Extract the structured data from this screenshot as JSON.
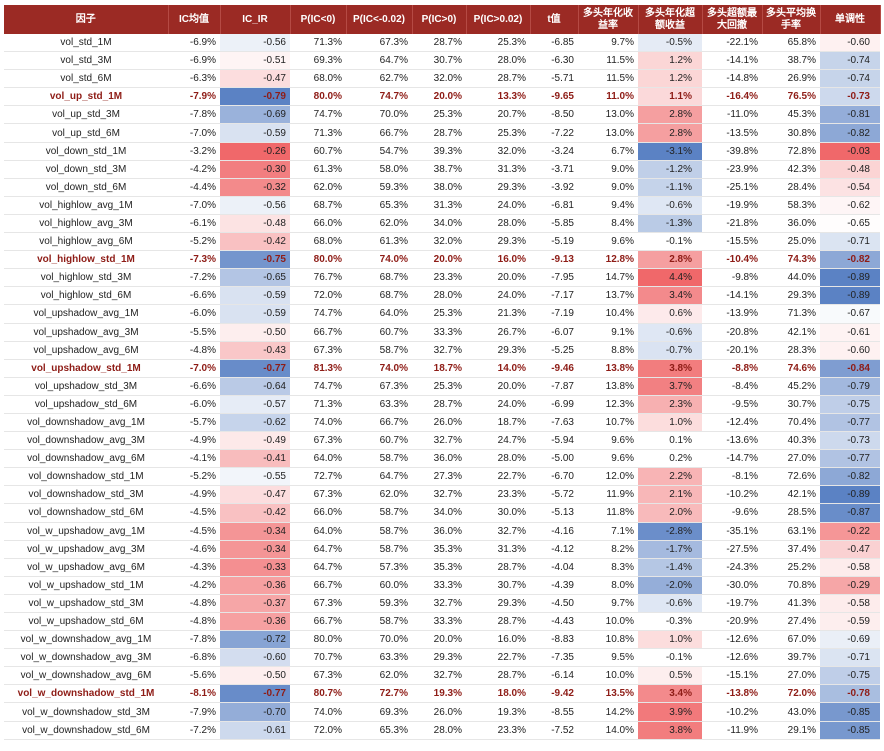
{
  "headers": [
    "因子",
    "IC均值",
    "IC_IR",
    "P(IC<0)",
    "P(IC<-0.02)",
    "P(IC>0)",
    "P(IC>0.02)",
    "t值",
    "多头年化收益率",
    "多头年化超额收益",
    "多头超额最大回撤",
    "多头平均换手率",
    "单调性"
  ],
  "header_lines": [
    [
      "因子"
    ],
    [
      "IC均值"
    ],
    [
      "IC_IR"
    ],
    [
      "P(IC<0)"
    ],
    [
      "P(IC<-0.02)"
    ],
    [
      "P(IC>0)"
    ],
    [
      "P(IC>0.02)"
    ],
    [
      "t值"
    ],
    [
      "多头年化收",
      "益率"
    ],
    [
      "多头年化超",
      "额收益"
    ],
    [
      "多头超额最",
      "大回撤"
    ],
    [
      "多头平均换",
      "手率"
    ],
    [
      "单调性"
    ]
  ],
  "rows": [
    {
      "name": "vol_std_1M",
      "ic": "-6.9%",
      "icir": "-0.56",
      "p1": "71.3%",
      "p2": "67.3%",
      "p3": "28.7%",
      "p4": "25.3%",
      "t": "-6.85",
      "ret": "9.7%",
      "ex": "-0.5%",
      "dd": "-22.1%",
      "to": "65.8%",
      "mono": "-0.60",
      "hl": false
    },
    {
      "name": "vol_std_3M",
      "ic": "-6.9%",
      "icir": "-0.51",
      "p1": "69.3%",
      "p2": "64.7%",
      "p3": "30.7%",
      "p4": "28.0%",
      "t": "-6.30",
      "ret": "11.5%",
      "ex": "1.2%",
      "dd": "-14.1%",
      "to": "38.7%",
      "mono": "-0.74",
      "hl": false
    },
    {
      "name": "vol_std_6M",
      "ic": "-6.3%",
      "icir": "-0.47",
      "p1": "68.0%",
      "p2": "62.7%",
      "p3": "32.0%",
      "p4": "28.7%",
      "t": "-5.71",
      "ret": "11.5%",
      "ex": "1.2%",
      "dd": "-14.8%",
      "to": "26.9%",
      "mono": "-0.74",
      "hl": false
    },
    {
      "name": "vol_up_std_1M",
      "ic": "-7.9%",
      "icir": "-0.79",
      "p1": "80.0%",
      "p2": "74.7%",
      "p3": "20.0%",
      "p4": "13.3%",
      "t": "-9.65",
      "ret": "11.0%",
      "ex": "1.1%",
      "dd": "-16.4%",
      "to": "76.5%",
      "mono": "-0.73",
      "hl": true
    },
    {
      "name": "vol_up_std_3M",
      "ic": "-7.8%",
      "icir": "-0.69",
      "p1": "74.7%",
      "p2": "70.0%",
      "p3": "25.3%",
      "p4": "20.7%",
      "t": "-8.50",
      "ret": "13.0%",
      "ex": "2.8%",
      "dd": "-11.0%",
      "to": "45.3%",
      "mono": "-0.81",
      "hl": false
    },
    {
      "name": "vol_up_std_6M",
      "ic": "-7.0%",
      "icir": "-0.59",
      "p1": "71.3%",
      "p2": "66.7%",
      "p3": "28.7%",
      "p4": "25.3%",
      "t": "-7.22",
      "ret": "13.0%",
      "ex": "2.8%",
      "dd": "-13.5%",
      "to": "30.8%",
      "mono": "-0.82",
      "hl": false
    },
    {
      "name": "vol_down_std_1M",
      "ic": "-3.2%",
      "icir": "-0.26",
      "p1": "60.7%",
      "p2": "54.7%",
      "p3": "39.3%",
      "p4": "32.0%",
      "t": "-3.24",
      "ret": "6.7%",
      "ex": "-3.1%",
      "dd": "-39.8%",
      "to": "72.8%",
      "mono": "-0.03",
      "hl": false
    },
    {
      "name": "vol_down_std_3M",
      "ic": "-4.2%",
      "icir": "-0.30",
      "p1": "61.3%",
      "p2": "58.0%",
      "p3": "38.7%",
      "p4": "31.3%",
      "t": "-3.71",
      "ret": "9.0%",
      "ex": "-1.2%",
      "dd": "-23.9%",
      "to": "42.3%",
      "mono": "-0.48",
      "hl": false
    },
    {
      "name": "vol_down_std_6M",
      "ic": "-4.4%",
      "icir": "-0.32",
      "p1": "62.0%",
      "p2": "59.3%",
      "p3": "38.0%",
      "p4": "29.3%",
      "t": "-3.92",
      "ret": "9.0%",
      "ex": "-1.1%",
      "dd": "-25.1%",
      "to": "28.4%",
      "mono": "-0.54",
      "hl": false
    },
    {
      "name": "vol_highlow_avg_1M",
      "ic": "-7.0%",
      "icir": "-0.56",
      "p1": "68.7%",
      "p2": "65.3%",
      "p3": "31.3%",
      "p4": "24.0%",
      "t": "-6.81",
      "ret": "9.4%",
      "ex": "-0.6%",
      "dd": "-19.9%",
      "to": "58.3%",
      "mono": "-0.62",
      "hl": false
    },
    {
      "name": "vol_highlow_avg_3M",
      "ic": "-6.1%",
      "icir": "-0.48",
      "p1": "66.0%",
      "p2": "62.0%",
      "p3": "34.0%",
      "p4": "28.0%",
      "t": "-5.85",
      "ret": "8.4%",
      "ex": "-1.3%",
      "dd": "-21.8%",
      "to": "36.0%",
      "mono": "-0.65",
      "hl": false
    },
    {
      "name": "vol_highlow_avg_6M",
      "ic": "-5.2%",
      "icir": "-0.42",
      "p1": "68.0%",
      "p2": "61.3%",
      "p3": "32.0%",
      "p4": "29.3%",
      "t": "-5.19",
      "ret": "9.6%",
      "ex": "-0.1%",
      "dd": "-15.5%",
      "to": "25.0%",
      "mono": "-0.71",
      "hl": false
    },
    {
      "name": "vol_highlow_std_1M",
      "ic": "-7.3%",
      "icir": "-0.75",
      "p1": "80.0%",
      "p2": "74.0%",
      "p3": "20.0%",
      "p4": "16.0%",
      "t": "-9.13",
      "ret": "12.8%",
      "ex": "2.8%",
      "dd": "-10.4%",
      "to": "74.3%",
      "mono": "-0.82",
      "hl": true
    },
    {
      "name": "vol_highlow_std_3M",
      "ic": "-7.2%",
      "icir": "-0.65",
      "p1": "76.7%",
      "p2": "68.7%",
      "p3": "23.3%",
      "p4": "20.0%",
      "t": "-7.95",
      "ret": "14.7%",
      "ex": "4.4%",
      "dd": "-9.8%",
      "to": "44.0%",
      "mono": "-0.89",
      "hl": false
    },
    {
      "name": "vol_highlow_std_6M",
      "ic": "-6.6%",
      "icir": "-0.59",
      "p1": "72.0%",
      "p2": "68.7%",
      "p3": "28.0%",
      "p4": "24.0%",
      "t": "-7.17",
      "ret": "13.7%",
      "ex": "3.4%",
      "dd": "-14.1%",
      "to": "29.3%",
      "mono": "-0.89",
      "hl": false
    },
    {
      "name": "vol_upshadow_avg_1M",
      "ic": "-6.0%",
      "icir": "-0.59",
      "p1": "74.7%",
      "p2": "64.0%",
      "p3": "25.3%",
      "p4": "21.3%",
      "t": "-7.19",
      "ret": "10.4%",
      "ex": "0.6%",
      "dd": "-13.9%",
      "to": "71.3%",
      "mono": "-0.67",
      "hl": false
    },
    {
      "name": "vol_upshadow_avg_3M",
      "ic": "-5.5%",
      "icir": "-0.50",
      "p1": "66.7%",
      "p2": "60.7%",
      "p3": "33.3%",
      "p4": "26.7%",
      "t": "-6.07",
      "ret": "9.1%",
      "ex": "-0.6%",
      "dd": "-20.8%",
      "to": "42.1%",
      "mono": "-0.61",
      "hl": false
    },
    {
      "name": "vol_upshadow_avg_6M",
      "ic": "-4.8%",
      "icir": "-0.43",
      "p1": "67.3%",
      "p2": "58.7%",
      "p3": "32.7%",
      "p4": "29.3%",
      "t": "-5.25",
      "ret": "8.8%",
      "ex": "-0.7%",
      "dd": "-20.1%",
      "to": "28.3%",
      "mono": "-0.60",
      "hl": false
    },
    {
      "name": "vol_upshadow_std_1M",
      "ic": "-7.0%",
      "icir": "-0.77",
      "p1": "81.3%",
      "p2": "74.0%",
      "p3": "18.7%",
      "p4": "14.0%",
      "t": "-9.46",
      "ret": "13.8%",
      "ex": "3.8%",
      "dd": "-8.8%",
      "to": "74.6%",
      "mono": "-0.84",
      "hl": true
    },
    {
      "name": "vol_upshadow_std_3M",
      "ic": "-6.6%",
      "icir": "-0.64",
      "p1": "74.7%",
      "p2": "67.3%",
      "p3": "25.3%",
      "p4": "20.0%",
      "t": "-7.87",
      "ret": "13.8%",
      "ex": "3.7%",
      "dd": "-8.4%",
      "to": "45.2%",
      "mono": "-0.79",
      "hl": false
    },
    {
      "name": "vol_upshadow_std_6M",
      "ic": "-6.0%",
      "icir": "-0.57",
      "p1": "71.3%",
      "p2": "63.3%",
      "p3": "28.7%",
      "p4": "24.0%",
      "t": "-6.99",
      "ret": "12.3%",
      "ex": "2.3%",
      "dd": "-9.5%",
      "to": "30.7%",
      "mono": "-0.75",
      "hl": false
    },
    {
      "name": "vol_downshadow_avg_1M",
      "ic": "-5.7%",
      "icir": "-0.62",
      "p1": "74.0%",
      "p2": "66.7%",
      "p3": "26.0%",
      "p4": "18.7%",
      "t": "-7.63",
      "ret": "10.7%",
      "ex": "1.0%",
      "dd": "-12.4%",
      "to": "70.4%",
      "mono": "-0.77",
      "hl": false
    },
    {
      "name": "vol_downshadow_avg_3M",
      "ic": "-4.9%",
      "icir": "-0.49",
      "p1": "67.3%",
      "p2": "60.7%",
      "p3": "32.7%",
      "p4": "24.7%",
      "t": "-5.94",
      "ret": "9.6%",
      "ex": "0.1%",
      "dd": "-13.6%",
      "to": "40.3%",
      "mono": "-0.73",
      "hl": false
    },
    {
      "name": "vol_downshadow_avg_6M",
      "ic": "-4.1%",
      "icir": "-0.41",
      "p1": "64.0%",
      "p2": "58.7%",
      "p3": "36.0%",
      "p4": "28.0%",
      "t": "-5.00",
      "ret": "9.6%",
      "ex": "0.2%",
      "dd": "-14.7%",
      "to": "27.0%",
      "mono": "-0.77",
      "hl": false
    },
    {
      "name": "vol_downshadow_std_1M",
      "ic": "-5.2%",
      "icir": "-0.55",
      "p1": "72.7%",
      "p2": "64.7%",
      "p3": "27.3%",
      "p4": "22.7%",
      "t": "-6.70",
      "ret": "12.0%",
      "ex": "2.2%",
      "dd": "-8.1%",
      "to": "72.6%",
      "mono": "-0.82",
      "hl": false
    },
    {
      "name": "vol_downshadow_std_3M",
      "ic": "-4.9%",
      "icir": "-0.47",
      "p1": "67.3%",
      "p2": "62.0%",
      "p3": "32.7%",
      "p4": "23.3%",
      "t": "-5.72",
      "ret": "11.9%",
      "ex": "2.1%",
      "dd": "-10.2%",
      "to": "42.1%",
      "mono": "-0.89",
      "hl": false
    },
    {
      "name": "vol_downshadow_std_6M",
      "ic": "-4.5%",
      "icir": "-0.42",
      "p1": "66.0%",
      "p2": "58.7%",
      "p3": "34.0%",
      "p4": "30.0%",
      "t": "-5.13",
      "ret": "11.8%",
      "ex": "2.0%",
      "dd": "-9.6%",
      "to": "28.5%",
      "mono": "-0.87",
      "hl": false
    },
    {
      "name": "vol_w_upshadow_avg_1M",
      "ic": "-4.5%",
      "icir": "-0.34",
      "p1": "64.0%",
      "p2": "58.7%",
      "p3": "36.0%",
      "p4": "32.7%",
      "t": "-4.16",
      "ret": "7.1%",
      "ex": "-2.8%",
      "dd": "-35.1%",
      "to": "63.1%",
      "mono": "-0.22",
      "hl": false
    },
    {
      "name": "vol_w_upshadow_avg_3M",
      "ic": "-4.6%",
      "icir": "-0.34",
      "p1": "64.7%",
      "p2": "58.7%",
      "p3": "35.3%",
      "p4": "31.3%",
      "t": "-4.12",
      "ret": "8.2%",
      "ex": "-1.7%",
      "dd": "-27.5%",
      "to": "37.4%",
      "mono": "-0.47",
      "hl": false
    },
    {
      "name": "vol_w_upshadow_avg_6M",
      "ic": "-4.3%",
      "icir": "-0.33",
      "p1": "64.7%",
      "p2": "57.3%",
      "p3": "35.3%",
      "p4": "28.7%",
      "t": "-4.04",
      "ret": "8.3%",
      "ex": "-1.4%",
      "dd": "-24.3%",
      "to": "25.2%",
      "mono": "-0.58",
      "hl": false
    },
    {
      "name": "vol_w_upshadow_std_1M",
      "ic": "-4.2%",
      "icir": "-0.36",
      "p1": "66.7%",
      "p2": "60.0%",
      "p3": "33.3%",
      "p4": "30.7%",
      "t": "-4.39",
      "ret": "8.0%",
      "ex": "-2.0%",
      "dd": "-30.0%",
      "to": "70.8%",
      "mono": "-0.29",
      "hl": false
    },
    {
      "name": "vol_w_upshadow_std_3M",
      "ic": "-4.8%",
      "icir": "-0.37",
      "p1": "67.3%",
      "p2": "59.3%",
      "p3": "32.7%",
      "p4": "29.3%",
      "t": "-4.50",
      "ret": "9.7%",
      "ex": "-0.6%",
      "dd": "-19.7%",
      "to": "41.3%",
      "mono": "-0.58",
      "hl": false
    },
    {
      "name": "vol_w_upshadow_std_6M",
      "ic": "-4.8%",
      "icir": "-0.36",
      "p1": "66.7%",
      "p2": "58.7%",
      "p3": "33.3%",
      "p4": "28.7%",
      "t": "-4.43",
      "ret": "10.0%",
      "ex": "-0.3%",
      "dd": "-20.9%",
      "to": "27.4%",
      "mono": "-0.59",
      "hl": false
    },
    {
      "name": "vol_w_downshadow_avg_1M",
      "ic": "-7.8%",
      "icir": "-0.72",
      "p1": "80.0%",
      "p2": "70.0%",
      "p3": "20.0%",
      "p4": "16.0%",
      "t": "-8.83",
      "ret": "10.8%",
      "ex": "1.0%",
      "dd": "-12.6%",
      "to": "67.0%",
      "mono": "-0.69",
      "hl": false
    },
    {
      "name": "vol_w_downshadow_avg_3M",
      "ic": "-6.8%",
      "icir": "-0.60",
      "p1": "70.7%",
      "p2": "63.3%",
      "p3": "29.3%",
      "p4": "22.7%",
      "t": "-7.35",
      "ret": "9.5%",
      "ex": "-0.1%",
      "dd": "-12.6%",
      "to": "39.7%",
      "mono": "-0.71",
      "hl": false
    },
    {
      "name": "vol_w_downshadow_avg_6M",
      "ic": "-5.6%",
      "icir": "-0.50",
      "p1": "67.3%",
      "p2": "62.0%",
      "p3": "32.7%",
      "p4": "28.7%",
      "t": "-6.14",
      "ret": "10.0%",
      "ex": "0.5%",
      "dd": "-15.1%",
      "to": "27.0%",
      "mono": "-0.75",
      "hl": false
    },
    {
      "name": "vol_w_downshadow_std_1M",
      "ic": "-8.1%",
      "icir": "-0.77",
      "p1": "80.7%",
      "p2": "72.7%",
      "p3": "19.3%",
      "p4": "18.0%",
      "t": "-9.42",
      "ret": "13.5%",
      "ex": "3.4%",
      "dd": "-13.8%",
      "to": "72.0%",
      "mono": "-0.78",
      "hl": true
    },
    {
      "name": "vol_w_downshadow_std_3M",
      "ic": "-7.9%",
      "icir": "-0.70",
      "p1": "74.0%",
      "p2": "69.3%",
      "p3": "26.0%",
      "p4": "19.3%",
      "t": "-8.55",
      "ret": "14.2%",
      "ex": "3.9%",
      "dd": "-10.2%",
      "to": "43.0%",
      "mono": "-0.85",
      "hl": false
    },
    {
      "name": "vol_w_downshadow_std_6M",
      "ic": "-7.2%",
      "icir": "-0.61",
      "p1": "72.0%",
      "p2": "65.3%",
      "p3": "28.0%",
      "p4": "23.3%",
      "t": "-7.52",
      "ret": "14.0%",
      "ex": "3.8%",
      "dd": "-11.9%",
      "to": "29.1%",
      "mono": "-0.85",
      "hl": false
    }
  ],
  "colors": {
    "header_bg": "#9b2a24",
    "highlight_text": "#8e1c16",
    "blue": "#5b82c4",
    "red": "#f0686a"
  }
}
